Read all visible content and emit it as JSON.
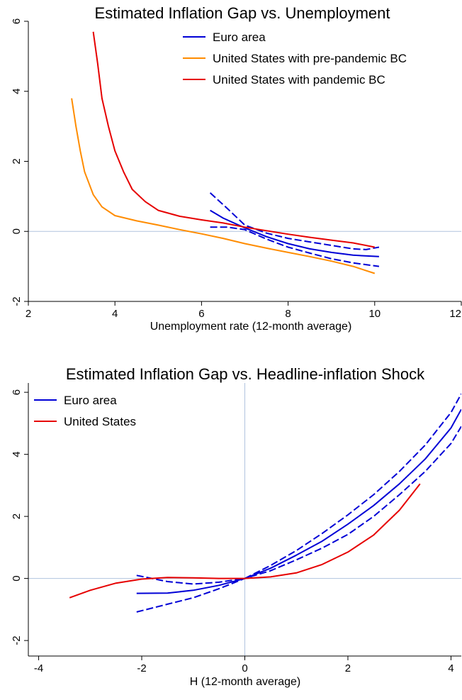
{
  "charts": [
    {
      "title": "Estimated Inflation Gap vs. Unemployment",
      "xlabel": "Unemployment rate (12-month average)",
      "ylabel": "",
      "legend": [
        "Euro area",
        "United States with pre-pandemic BC",
        "United States with pandemic BC"
      ],
      "xticks": [
        "2",
        "4",
        "6",
        "8",
        "10",
        "12"
      ],
      "yticks": [
        "-2",
        "0",
        "2",
        "4",
        "6"
      ]
    },
    {
      "title": "Estimated Inflation Gap vs. Headline-inflation Shock",
      "xlabel": "H (12-month average)",
      "ylabel": "",
      "legend": [
        "Euro area",
        "United States"
      ],
      "xticks": [
        "-4",
        "-2",
        "0",
        "2",
        "4"
      ],
      "yticks": [
        "-2",
        "0",
        "2",
        "4",
        "6"
      ]
    }
  ],
  "colors": {
    "blue": "#0000d6",
    "orange": "#ff8c00",
    "red": "#e60000",
    "refline": "#b0c4de"
  },
  "chart_data": [
    {
      "type": "line",
      "title": "Estimated Inflation Gap vs. Unemployment",
      "xlabel": "Unemployment rate (12-month average)",
      "xlim": [
        2,
        12
      ],
      "ylim": [
        -2,
        6
      ],
      "xticks": [
        2,
        4,
        6,
        8,
        10,
        12
      ],
      "yticks": [
        -2,
        0,
        2,
        4,
        6
      ],
      "hline": 0,
      "legend_position": "top-center",
      "series": [
        {
          "name": "Euro area",
          "color": "#0000d6",
          "style": "solid",
          "points": [
            [
              6.2,
              0.6
            ],
            [
              6.5,
              0.38
            ],
            [
              7.0,
              0.1
            ],
            [
              7.5,
              -0.15
            ],
            [
              8.0,
              -0.35
            ],
            [
              8.5,
              -0.5
            ],
            [
              9.0,
              -0.6
            ],
            [
              9.5,
              -0.68
            ],
            [
              10.1,
              -0.72
            ]
          ]
        },
        {
          "name": "Euro area CI upper",
          "color": "#0000d6",
          "style": "dashed",
          "points": [
            [
              6.2,
              1.1
            ],
            [
              6.6,
              0.65
            ],
            [
              7.0,
              0.18
            ],
            [
              7.5,
              -0.05
            ],
            [
              8.0,
              -0.2
            ],
            [
              8.5,
              -0.3
            ],
            [
              9.0,
              -0.4
            ],
            [
              9.5,
              -0.5
            ],
            [
              9.8,
              -0.52
            ],
            [
              10.1,
              -0.45
            ]
          ]
        },
        {
          "name": "Euro area CI lower",
          "color": "#0000d6",
          "style": "dashed",
          "points": [
            [
              6.2,
              0.12
            ],
            [
              6.6,
              0.12
            ],
            [
              7.0,
              0.05
            ],
            [
              7.5,
              -0.22
            ],
            [
              8.0,
              -0.45
            ],
            [
              8.5,
              -0.62
            ],
            [
              9.0,
              -0.78
            ],
            [
              9.5,
              -0.9
            ],
            [
              10.1,
              -1.0
            ]
          ]
        },
        {
          "name": "United States with pre-pandemic BC",
          "color": "#ff8c00",
          "style": "solid",
          "points": [
            [
              3.0,
              3.8
            ],
            [
              3.1,
              3.0
            ],
            [
              3.2,
              2.3
            ],
            [
              3.3,
              1.7
            ],
            [
              3.5,
              1.05
            ],
            [
              3.7,
              0.7
            ],
            [
              4.0,
              0.45
            ],
            [
              4.5,
              0.3
            ],
            [
              5.0,
              0.18
            ],
            [
              5.5,
              0.05
            ],
            [
              6.0,
              -0.07
            ],
            [
              6.5,
              -0.2
            ],
            [
              7.0,
              -0.35
            ],
            [
              7.5,
              -0.48
            ],
            [
              8.0,
              -0.6
            ],
            [
              8.5,
              -0.72
            ],
            [
              9.0,
              -0.85
            ],
            [
              9.5,
              -1.0
            ],
            [
              10.0,
              -1.2
            ]
          ]
        },
        {
          "name": "United States with pandemic BC",
          "color": "#e60000",
          "style": "solid",
          "points": [
            [
              3.5,
              5.7
            ],
            [
              3.6,
              4.8
            ],
            [
              3.7,
              3.8
            ],
            [
              3.85,
              3.0
            ],
            [
              4.0,
              2.3
            ],
            [
              4.2,
              1.7
            ],
            [
              4.4,
              1.2
            ],
            [
              4.7,
              0.85
            ],
            [
              5.0,
              0.6
            ],
            [
              5.5,
              0.43
            ],
            [
              6.0,
              0.33
            ],
            [
              6.5,
              0.24
            ],
            [
              7.0,
              0.12
            ],
            [
              7.5,
              0.02
            ],
            [
              8.0,
              -0.08
            ],
            [
              8.5,
              -0.17
            ],
            [
              9.0,
              -0.25
            ],
            [
              9.5,
              -0.33
            ],
            [
              10.0,
              -0.45
            ]
          ]
        }
      ]
    },
    {
      "type": "line",
      "title": "Estimated Inflation Gap vs. Headline-inflation Shock",
      "xlabel": "H (12-month average)",
      "xlim": [
        -4.2,
        4.2
      ],
      "ylim": [
        -2.5,
        6.3
      ],
      "xticks": [
        -4,
        -2,
        0,
        2,
        4
      ],
      "yticks": [
        -2,
        0,
        2,
        4,
        6
      ],
      "hline": 0,
      "vline": 0,
      "legend_position": "top-left",
      "series": [
        {
          "name": "Euro area",
          "color": "#0000d6",
          "style": "solid",
          "points": [
            [
              -2.1,
              -0.48
            ],
            [
              -1.5,
              -0.47
            ],
            [
              -1.0,
              -0.38
            ],
            [
              -0.5,
              -0.22
            ],
            [
              0,
              0
            ],
            [
              0.5,
              0.33
            ],
            [
              1.0,
              0.75
            ],
            [
              1.5,
              1.2
            ],
            [
              2.0,
              1.75
            ],
            [
              2.5,
              2.35
            ],
            [
              3.0,
              3.05
            ],
            [
              3.5,
              3.85
            ],
            [
              4.0,
              4.85
            ],
            [
              4.2,
              5.45
            ]
          ]
        },
        {
          "name": "Euro area CI upper",
          "color": "#0000d6",
          "style": "dashed",
          "points": [
            [
              -2.1,
              0.1
            ],
            [
              -1.5,
              -0.1
            ],
            [
              -1.0,
              -0.18
            ],
            [
              -0.5,
              -0.12
            ],
            [
              0,
              0
            ],
            [
              0.5,
              0.42
            ],
            [
              1.0,
              0.9
            ],
            [
              1.5,
              1.45
            ],
            [
              2.0,
              2.05
            ],
            [
              2.5,
              2.7
            ],
            [
              3.0,
              3.45
            ],
            [
              3.5,
              4.3
            ],
            [
              4.0,
              5.35
            ],
            [
              4.2,
              5.95
            ]
          ]
        },
        {
          "name": "Euro area CI lower",
          "color": "#0000d6",
          "style": "dashed",
          "points": [
            [
              -2.1,
              -1.08
            ],
            [
              -1.5,
              -0.83
            ],
            [
              -1.0,
              -0.62
            ],
            [
              -0.5,
              -0.33
            ],
            [
              0,
              0
            ],
            [
              0.5,
              0.25
            ],
            [
              1.0,
              0.6
            ],
            [
              1.5,
              0.98
            ],
            [
              2.0,
              1.42
            ],
            [
              2.5,
              2.0
            ],
            [
              3.0,
              2.7
            ],
            [
              3.5,
              3.45
            ],
            [
              4.0,
              4.35
            ],
            [
              4.2,
              4.9
            ]
          ]
        },
        {
          "name": "United States",
          "color": "#e60000",
          "style": "solid",
          "points": [
            [
              -3.4,
              -0.62
            ],
            [
              -3.0,
              -0.38
            ],
            [
              -2.5,
              -0.15
            ],
            [
              -2.0,
              -0.02
            ],
            [
              -1.5,
              0.03
            ],
            [
              -1.0,
              0.02
            ],
            [
              -0.5,
              0.0
            ],
            [
              0,
              0
            ],
            [
              0.5,
              0.05
            ],
            [
              1.0,
              0.18
            ],
            [
              1.5,
              0.45
            ],
            [
              2.0,
              0.85
            ],
            [
              2.5,
              1.4
            ],
            [
              3.0,
              2.2
            ],
            [
              3.4,
              3.05
            ]
          ]
        }
      ]
    }
  ]
}
